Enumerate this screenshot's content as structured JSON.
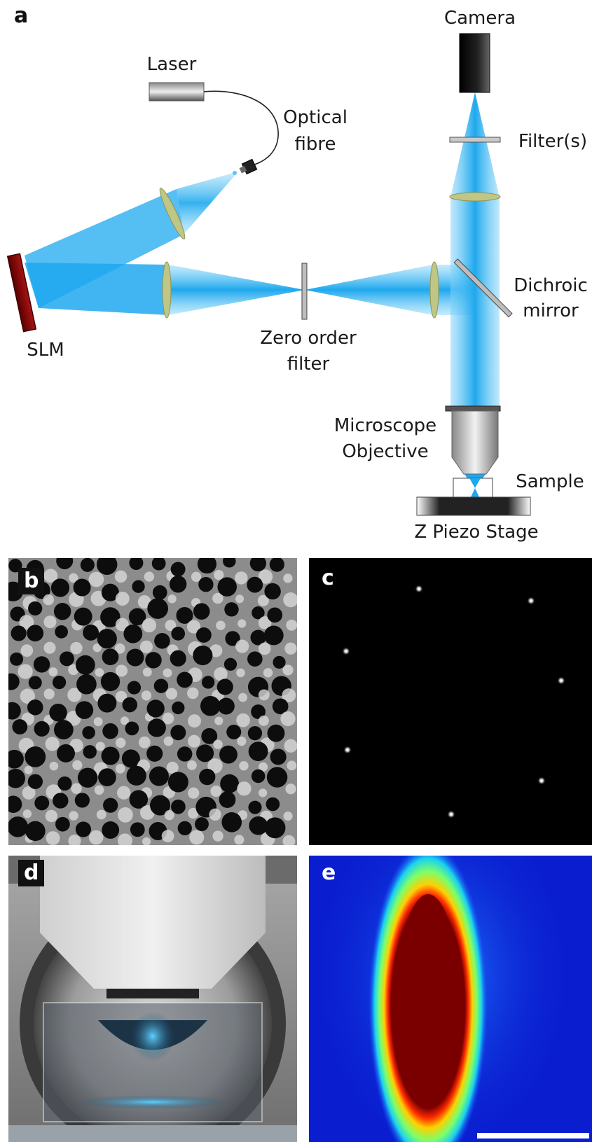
{
  "panels": {
    "a": "a",
    "b": "b",
    "c": "c",
    "d": "d",
    "e": "e"
  },
  "labels": {
    "camera": "Camera",
    "laser": "Laser",
    "optical_fibre_1": "Optical",
    "optical_fibre_2": "fibre",
    "filters": "Filter(s)",
    "dichroic_1": "Dichroic",
    "dichroic_2": "mirror",
    "slm": "SLM",
    "zero_order_1": "Zero order",
    "zero_order_2": "filter",
    "objective_1": "Microscope",
    "objective_2": "Objective",
    "sample": "Sample",
    "stage": "Z Piezo Stage"
  },
  "colors": {
    "beam": "#1ea8ee",
    "lens": "#b7bd7a",
    "slm": "#8a0c0c",
    "camera": "#111111"
  },
  "spots_panel_c": 7
}
